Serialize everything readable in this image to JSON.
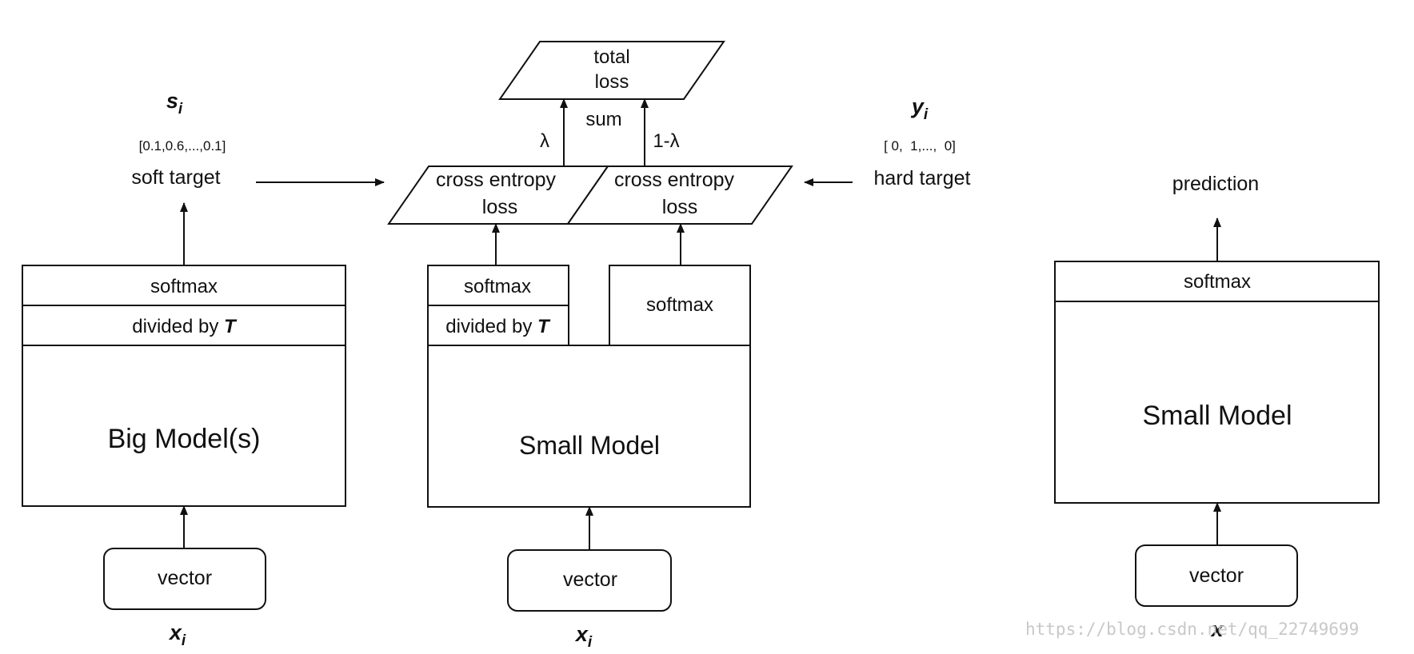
{
  "left": {
    "top_symbol_main": "s",
    "top_symbol_sub": "i",
    "soft_values": "[0.1,0.6,...,0.1]",
    "soft_target": "soft target",
    "softmax": "softmax",
    "divided_prefix": "divided by ",
    "divided_T": "T",
    "model": "Big Model(s)",
    "vector": "vector",
    "input_main": "x",
    "input_sub": "i"
  },
  "middle": {
    "total_loss_line1": "total",
    "total_loss_line2": "loss",
    "sum": "sum",
    "lambda": "λ",
    "one_minus_lambda": "1-λ",
    "ce1_line1": "cross entropy",
    "ce1_line2": "loss",
    "ce2_line1": "cross entropy",
    "ce2_line2": "loss",
    "softmax_t": "softmax",
    "divided_prefix": "divided by ",
    "divided_T": "T",
    "softmax": "softmax",
    "model": "Small Model",
    "vector": "vector",
    "input_main": "x",
    "input_sub": "i"
  },
  "hard": {
    "symbol_main": "y",
    "symbol_sub": "i",
    "values": "[ 0,  1,...,  0]",
    "hard_target": "hard target"
  },
  "right": {
    "prediction": "prediction",
    "softmax": "softmax",
    "model": "Small Model",
    "vector": "vector",
    "input_main": "x"
  },
  "watermark": "https://blog.csdn.net/qq_22749699"
}
